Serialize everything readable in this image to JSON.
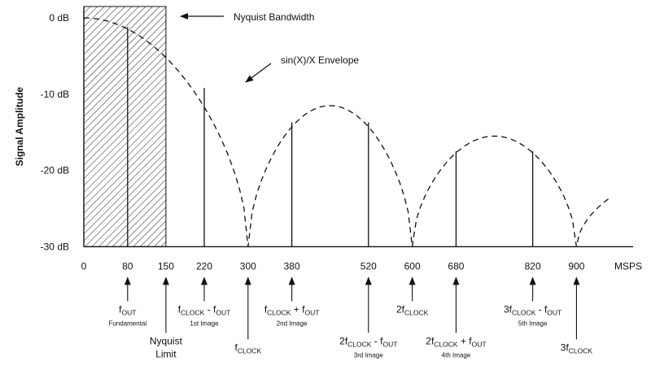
{
  "chart_data": {
    "type": "bar",
    "xlabel": "MSPS",
    "ylabel": "Signal Amplitude",
    "xlim": [
      0,
      1000
    ],
    "ylim": [
      -30,
      0
    ],
    "x_ticks": [
      "0",
      "80",
      "150",
      "220",
      "300",
      "380",
      "520",
      "600",
      "680",
      "820",
      "900"
    ],
    "y_ticks": [
      "0 dB",
      "-10 dB",
      "-20 dB",
      "-30 dB"
    ],
    "shaded_region": {
      "x": [
        0,
        150
      ],
      "label": "Nyquist Bandwidth"
    },
    "envelope_label": "sin(X)/X Envelope",
    "envelope_nulls_x": [
      300,
      600,
      900
    ],
    "envelope_peaks": [
      {
        "x": 0,
        "y": 0
      },
      {
        "x": 450,
        "y": -11.5
      },
      {
        "x": 750,
        "y": -15.5
      }
    ],
    "series": [
      {
        "x": [
          80,
          220,
          380,
          520,
          680,
          820
        ],
        "values": [
          -1.2,
          -9.2,
          -13.7,
          -13.7,
          -17.5,
          -17.5
        ]
      }
    ],
    "annotations": [
      {
        "x": 80,
        "lines": [
          {
            "main": "f",
            "sub": "OUT"
          },
          {
            "desc": "Fundamental"
          }
        ]
      },
      {
        "x": 150,
        "lines": [
          {
            "main": "Nyquist"
          },
          {
            "main": "Limit"
          }
        ]
      },
      {
        "x": 220,
        "lines": [
          {
            "main": "f",
            "sub": "CLOCK",
            "rest": " - f",
            "sub2": "OUT"
          },
          {
            "desc": "1st Image"
          }
        ]
      },
      {
        "x": 300,
        "lines": [
          {
            "main": "f",
            "sub": "CLOCK"
          }
        ]
      },
      {
        "x": 380,
        "lines": [
          {
            "main": "f",
            "sub": "CLOCK",
            "rest": " + f",
            "sub2": "OUT"
          },
          {
            "desc": "2nd Image"
          }
        ]
      },
      {
        "x": 520,
        "lines": [
          {
            "main": "2f",
            "sub": "CLOCK",
            "rest": " - f",
            "sub2": "OUT"
          },
          {
            "desc": "3rd Image"
          }
        ]
      },
      {
        "x": 600,
        "lines": [
          {
            "main": "2f",
            "sub": "CLOCK"
          }
        ]
      },
      {
        "x": 680,
        "lines": [
          {
            "main": "2f",
            "sub": "CLOCK",
            "rest": " + f",
            "sub2": "OUT"
          },
          {
            "desc": "4th Image"
          }
        ]
      },
      {
        "x": 820,
        "lines": [
          {
            "main": "3f",
            "sub": "CLOCK",
            "rest": " - f",
            "sub2": "OUT"
          },
          {
            "desc": "5th Image"
          }
        ]
      },
      {
        "x": 900,
        "lines": [
          {
            "main": "3f",
            "sub": "CLOCK"
          }
        ]
      }
    ]
  }
}
